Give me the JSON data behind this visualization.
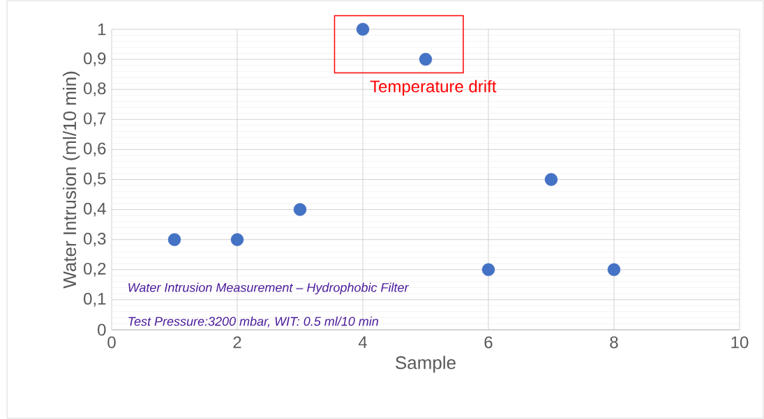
{
  "chart_data": {
    "type": "scatter",
    "xlabel": "Sample",
    "ylabel": "Water Intrusion (ml/10 min)",
    "x": [
      1,
      2,
      3,
      4,
      5,
      6,
      7,
      8
    ],
    "values": [
      0.3,
      0.3,
      0.4,
      1,
      0.9,
      0.2,
      0.5,
      0.2
    ],
    "color": "#4472c4",
    "marker": "circle",
    "grid": true,
    "xlim": [
      0,
      10
    ],
    "ylim": [
      0,
      1
    ],
    "xticks": [
      0,
      2,
      4,
      6,
      8,
      10
    ],
    "yticks": [
      0,
      {
        "value": 0.1,
        "label": "0,1"
      },
      {
        "value": 0.2,
        "label": "0,2"
      },
      {
        "value": 0.3,
        "label": "0,3"
      },
      {
        "value": 0.4,
        "label": "0,4"
      },
      {
        "value": 0.5,
        "label": "0,5"
      },
      {
        "value": 0.6,
        "label": "0,6"
      },
      {
        "value": 0.7,
        "label": "0,7"
      },
      {
        "value": 0.8,
        "label": "0,8"
      },
      {
        "value": 0.9,
        "label": "0,9"
      },
      1
    ],
    "annotations": [
      "Temperature drift",
      "Water Intrusion Measurement – Hydrophobic Filter",
      "Test Pressure:3200 mbar, WIT: 0.5 ml/10 min"
    ]
  }
}
